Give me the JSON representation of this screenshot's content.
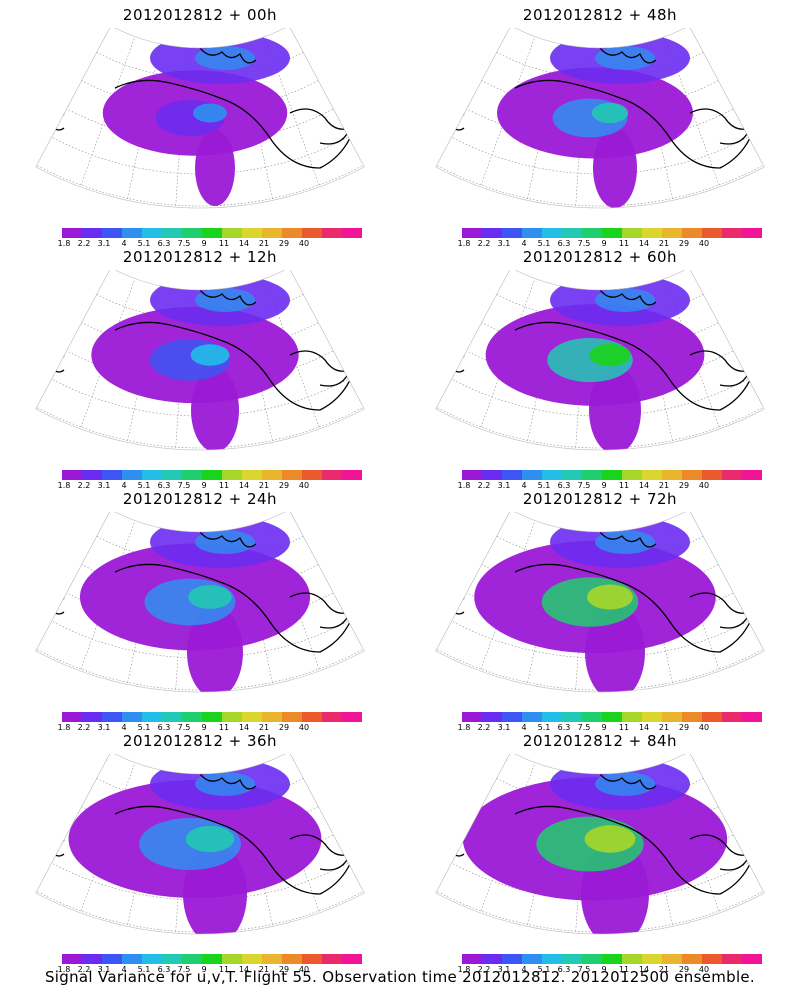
{
  "panels": [
    {
      "title": "2012012812 + 00h"
    },
    {
      "title": "2012012812 + 48h"
    },
    {
      "title": "2012012812 + 12h"
    },
    {
      "title": "2012012812 + 60h"
    },
    {
      "title": "2012012812 + 24h"
    },
    {
      "title": "2012012812 + 72h"
    },
    {
      "title": "2012012812 + 36h"
    },
    {
      "title": "2012012812 + 84h"
    }
  ],
  "colorbar": {
    "colors": [
      "#9b19d6",
      "#6a2cf0",
      "#3d55f2",
      "#2f8ff0",
      "#22bde8",
      "#22c9b4",
      "#1fce6c",
      "#19d31c",
      "#a6d62a",
      "#dcd52e",
      "#e9b52e",
      "#ec8a2a",
      "#eb5a2a",
      "#ea2a6a",
      "#f21496"
    ],
    "tick_labels": [
      "1.8",
      "2.2",
      "3.1",
      "4",
      "5.1",
      "6.3",
      "7.5",
      "9",
      "11",
      "14",
      "21",
      "29",
      "40"
    ]
  },
  "caption": "Signal Variance for u,v,T. Flight 55. Observation time 2012012812. 2012012500 ensemble."
}
